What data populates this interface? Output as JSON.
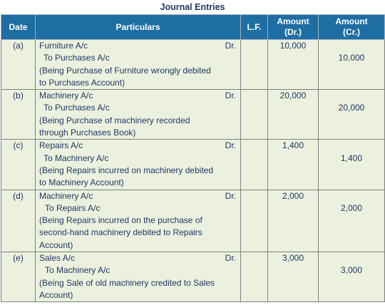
{
  "title": "Journal Entries",
  "headers": {
    "date": "Date",
    "particulars": "Particulars",
    "lf": "L.F.",
    "amount_dr_1": "Amount",
    "amount_dr_2": "(Dr.)",
    "amount_cr_1": "Amount",
    "amount_cr_2": "(Cr.)"
  },
  "entries": [
    {
      "date": "(a)",
      "debit": "Furniture A/c",
      "dr": "Dr.",
      "credit": "To Purchases A/c",
      "narration_1": "(Being Purchase of Furniture wrongly debited",
      "narration_2": "to Purchases Account)",
      "narration_3": "",
      "amount_dr": "10,000",
      "amount_cr": "10,000"
    },
    {
      "date": "(b)",
      "debit": "Machinery A/c",
      "dr": "Dr.",
      "credit": "To Purchases A/c",
      "narration_1": "(Being Purchase of machinery recorded",
      "narration_2": "through Purchases Book)",
      "narration_3": "",
      "amount_dr": "20,000",
      "amount_cr": "20,000"
    },
    {
      "date": "(c)",
      "debit": "Repairs A/c",
      "dr": "Dr.",
      "credit": "To Machinery A/c",
      "narration_1": "(Being Repairs incurred on machinery debited",
      "narration_2": "to Machinery Account)",
      "narration_3": "",
      "amount_dr": "1,400",
      "amount_cr": "1,400"
    },
    {
      "date": "(d)",
      "debit": "Machinery A/c",
      "dr": "Dr.",
      "credit": "To Repairs A/c",
      "narration_1": "(Being Repairs incurred on the purchase of",
      "narration_2": "second-hand machinery debited to Repairs",
      "narration_3": "Account)",
      "amount_dr": "2,000",
      "amount_cr": "2,000"
    },
    {
      "date": "(e)",
      "debit": "Sales A/c",
      "dr": "Dr.",
      "credit": "To Machinery A/c",
      "narration_1": "(Being Sale of old machinery credited to Sales",
      "narration_2": "Account)",
      "narration_3": "",
      "amount_dr": "3,000",
      "amount_cr": "3,000"
    }
  ]
}
